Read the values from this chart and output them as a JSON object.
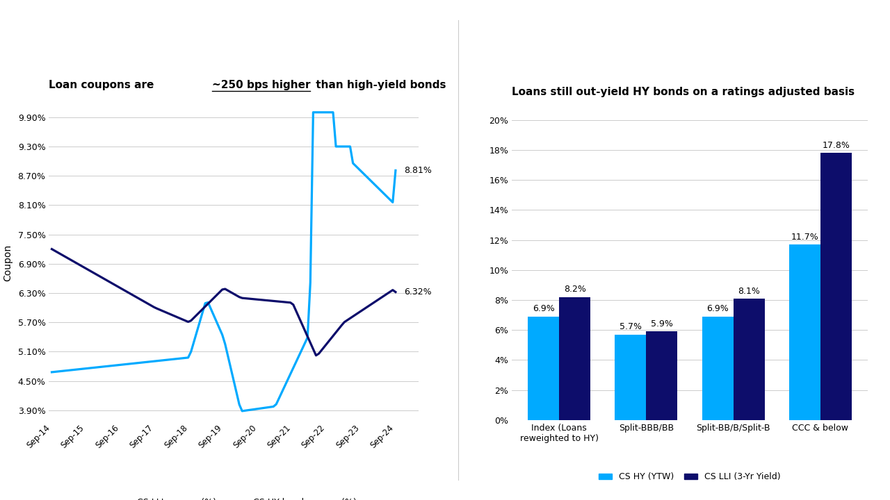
{
  "left_title_1": "Loan coupons are ",
  "left_title_2": "~250 bps higher",
  "left_title_3": " than high-yield bonds",
  "right_title": "Loans still out-yield HY bonds on a ratings adjusted basis",
  "ylabel_left": "Coupon",
  "color_lli": "#00AAFF",
  "color_hy": "#0D0D6B",
  "color_bar_hy": "#00AAFF",
  "color_bar_lli": "#0D0D6B",
  "yticks_left": [
    0.039,
    0.045,
    0.051,
    0.057,
    0.063,
    0.069,
    0.075,
    0.081,
    0.087,
    0.093,
    0.099
  ],
  "ytick_labels_left": [
    "3.90%",
    "4.50%",
    "5.10%",
    "5.70%",
    "6.30%",
    "6.90%",
    "7.50%",
    "8.10%",
    "8.70%",
    "9.30%",
    "9.90%"
  ],
  "ylim_left": [
    0.037,
    0.1015
  ],
  "xtick_labels": [
    "Sep-14",
    "Sep-15",
    "Sep-16",
    "Sep-17",
    "Sep-18",
    "Sep-19",
    "Sep-20",
    "Sep-21",
    "Sep-22",
    "Sep-23",
    "Sep-24"
  ],
  "lli_last_label": "8.81%",
  "hy_last_label": "6.32%",
  "bar_categories": [
    "Index (Loans\nreweighted to HY)",
    "Split-BBB/BB",
    "Split-BB/B/Split-B",
    "CCC & below"
  ],
  "bar_hy_values": [
    6.9,
    5.7,
    6.9,
    11.7
  ],
  "bar_lli_values": [
    8.2,
    5.9,
    8.1,
    17.8
  ],
  "bar_hy_labels": [
    "6.9%",
    "5.7%",
    "6.9%",
    "11.7%"
  ],
  "bar_lli_labels": [
    "8.2%",
    "5.9%",
    "8.1%",
    "17.8%"
  ],
  "yticks_right": [
    0,
    2,
    4,
    6,
    8,
    10,
    12,
    14,
    16,
    18,
    20
  ],
  "ytick_labels_right": [
    "0%",
    "2%",
    "4%",
    "6%",
    "8%",
    "10%",
    "12%",
    "14%",
    "16%",
    "18%",
    "20%"
  ],
  "ylim_right": [
    0,
    21
  ],
  "legend_left_1": "CS LLI coupon (%)",
  "legend_left_2": "CS HY bond coupon (%)",
  "legend_right_1": "CS HY (YTW)",
  "legend_right_2": "CS LLI (3-Yr Yield)",
  "background_color": "#ffffff"
}
